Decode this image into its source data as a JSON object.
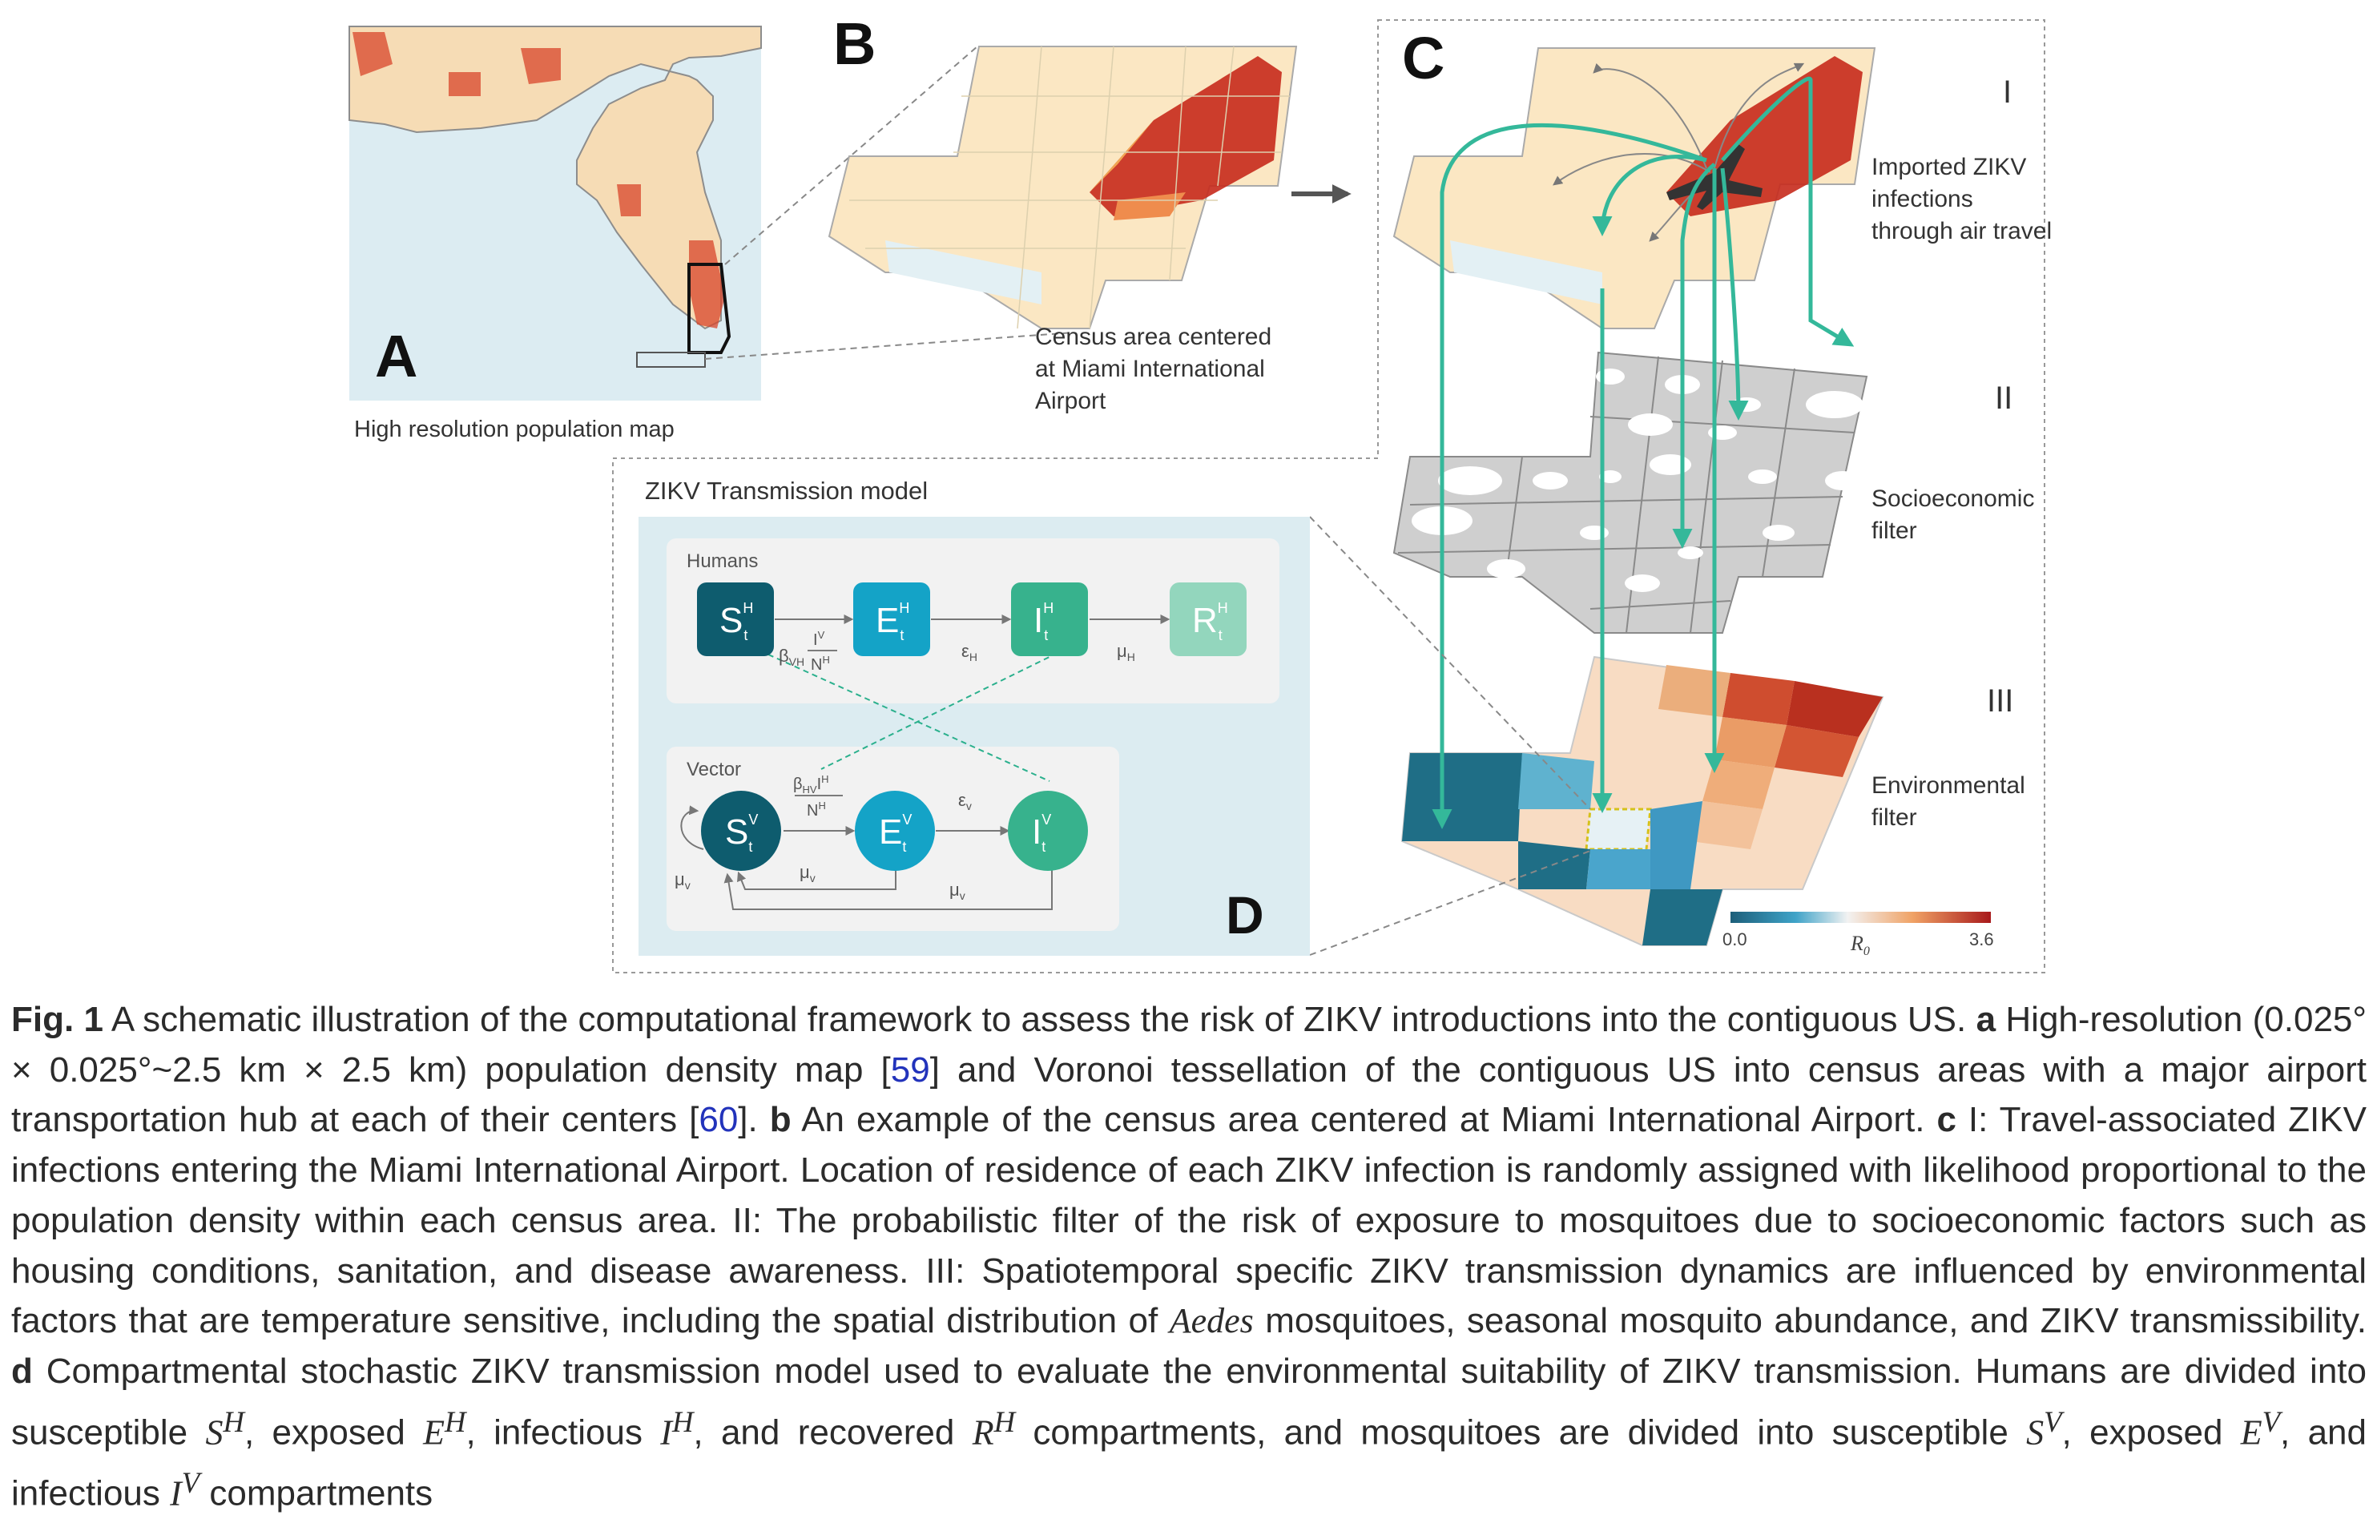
{
  "panels": {
    "a": {
      "letter": "A",
      "label": "High resolution population map"
    },
    "b": {
      "letter": "B",
      "callout_lines": [
        "Census area centered",
        "at Miami International",
        "Airport"
      ]
    },
    "c": {
      "letter": "C",
      "layer1": {
        "numeral": "I",
        "label_lines": [
          "Imported ZIKV",
          "infections",
          "through air travel"
        ]
      },
      "layer2": {
        "numeral": "II",
        "label_lines": [
          "Socioeconomic",
          "filter"
        ]
      },
      "layer3": {
        "numeral": "III",
        "label_lines": [
          "Environmental",
          "filter"
        ]
      },
      "colorbar": {
        "min": "0.0",
        "max": "3.6",
        "label": "R",
        "label_sub": "0"
      }
    },
    "d": {
      "letter": "D",
      "title": "ZIKV Transmission model",
      "humans": {
        "group_label": "Humans",
        "nodes": [
          {
            "base": "S",
            "sup": "H",
            "sub": "t",
            "color": "#0e5c6e"
          },
          {
            "base": "E",
            "sup": "H",
            "sub": "t",
            "color": "#14a3c7"
          },
          {
            "base": "I",
            "sup": "H",
            "sub": "t",
            "color": "#37b28d"
          },
          {
            "base": "R",
            "sup": "H",
            "sub": "t",
            "color": "#93d6bd"
          }
        ],
        "rates": {
          "infection": {
            "beta": "β",
            "beta_sub": "VH",
            "num": "I",
            "num_sup": "V",
            "den": "N",
            "den_sup": "H"
          },
          "incubation": {
            "sym": "ε",
            "sub": "H"
          },
          "recovery": {
            "sym": "μ",
            "sub": "H"
          }
        }
      },
      "vector": {
        "group_label": "Vector",
        "nodes": [
          {
            "base": "S",
            "sup": "V",
            "sub": "t",
            "color": "#0e5c6e"
          },
          {
            "base": "E",
            "sup": "V",
            "sub": "t",
            "color": "#14a3c7"
          },
          {
            "base": "I",
            "sup": "V",
            "sub": "t",
            "color": "#37b28d"
          }
        ],
        "rates": {
          "infection": {
            "beta": "β",
            "beta_sub": "HV",
            "num": "I",
            "num_sup": "H",
            "den": "N",
            "den_sup": "H"
          },
          "incubation": {
            "sym": "ε",
            "sub": "v"
          },
          "mortality": {
            "sym": "μ",
            "sub": "v"
          }
        }
      }
    }
  },
  "caption": {
    "fig_label": "Fig. 1",
    "seg1": " A schematic illustration of the computational framework to assess the risk of ZIKV introductions into the contiguous US. ",
    "a": "a",
    "seg2": " High-resolution (0.025° × 0.025°~2.5 km × 2.5 km) population density map [",
    "ref1": "59",
    "seg3": "] and Voronoi tessellation of the contiguous US into census areas with a major airport transportation hub at each of their centers [",
    "ref2": "60",
    "seg4": "]. ",
    "b": "b",
    "seg5": " An example of the census area centered at Miami International Airport. ",
    "c": "c",
    "seg6": " I: Travel-associated ZIKV infections entering the Miami International Airport. Location of residence of each ZIKV infection is randomly assigned with likelihood proportional to the population density within each census area. II: The probabilistic filter of the risk of exposure to mosquitoes due to socioeconomic factors such as housing conditions, sanitation, and disease awareness. III: Spatiotemporal specific ZIKV transmission dynamics are influenced by environmental factors that are temperature sensitive, including the spatial distribution of ",
    "aedes": "Aedes",
    "seg7": " mosquitoes, seasonal mosquito abundance, and ZIKV transmissibility. ",
    "d": "d",
    "seg8": " Compartmental stochastic ZIKV transmission model used to evaluate the environmental suitability of ZIKV transmission. Humans are divided into susceptible ",
    "sh": "S",
    "sh_sup": "H",
    "seg9": ", exposed ",
    "eh": "E",
    "eh_sup": "H",
    "seg10": ", infectious ",
    "ih": "I",
    "ih_sup": "H",
    "seg11": ", and recovered ",
    "rh": "R",
    "rh_sup": "H",
    "seg12": " compartments, and mosquitoes are divided into susceptible ",
    "sv": "S",
    "sv_sup": "V",
    "seg13": ", exposed ",
    "ev": "E",
    "ev_sup": "V",
    "seg14": ", and infectious ",
    "iv": "I",
    "iv_sup": "V",
    "seg15": " compartments"
  }
}
